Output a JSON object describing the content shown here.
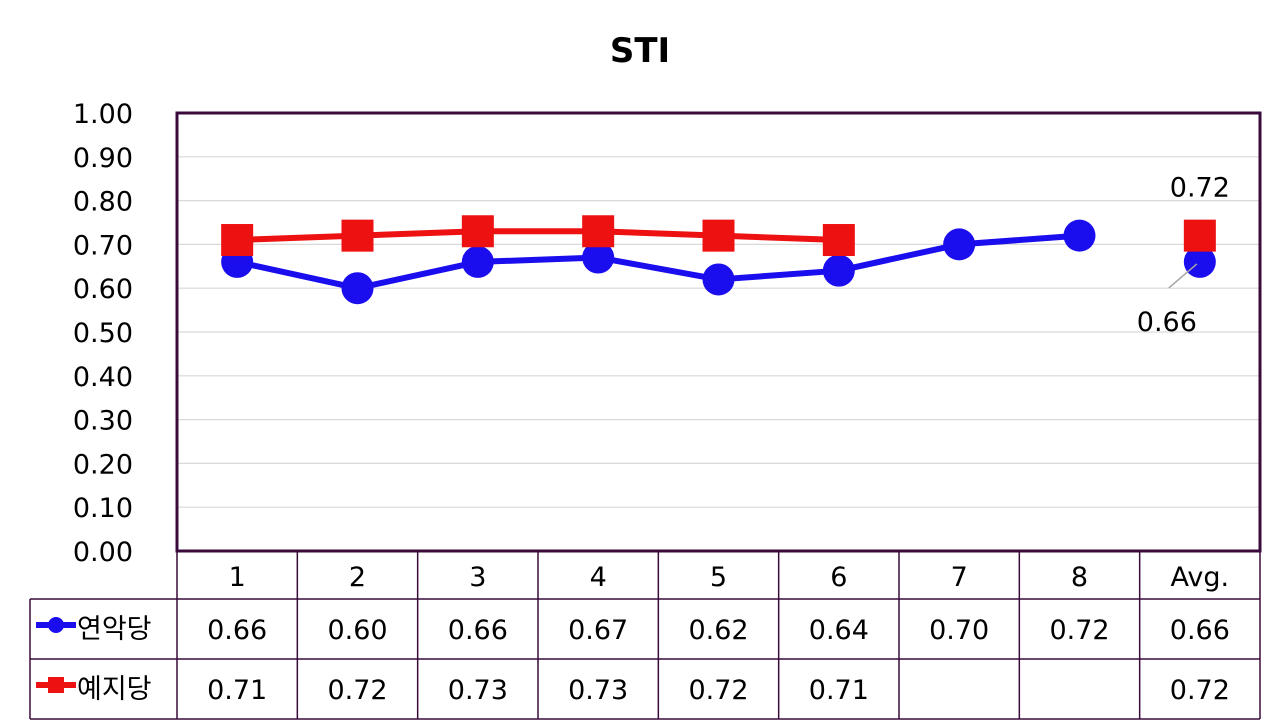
{
  "chart_data": {
    "type": "line",
    "title": "STI",
    "categories": [
      "1",
      "2",
      "3",
      "4",
      "5",
      "6",
      "7",
      "8",
      "Avg."
    ],
    "ylim": [
      0,
      1.0
    ],
    "ytick_step": 0.1,
    "yticks": [
      "0.00",
      "0.10",
      "0.20",
      "0.30",
      "0.40",
      "0.50",
      "0.60",
      "0.70",
      "0.80",
      "0.90",
      "1.00"
    ],
    "grid": true,
    "data_table": true,
    "series": [
      {
        "name": "연악당",
        "color": "#1a0dee",
        "marker": "circle",
        "values": [
          0.66,
          0.6,
          0.66,
          0.67,
          0.62,
          0.64,
          0.7,
          0.72,
          0.66
        ],
        "labels": [
          "0.66",
          "0.60",
          "0.66",
          "0.67",
          "0.62",
          "0.64",
          "0.70",
          "0.72",
          "0.66"
        ]
      },
      {
        "name": "예지당",
        "color": "#ee1111",
        "marker": "square",
        "values": [
          0.71,
          0.72,
          0.73,
          0.73,
          0.72,
          0.71,
          null,
          null,
          0.72
        ],
        "labels": [
          "0.71",
          "0.72",
          "0.73",
          "0.73",
          "0.72",
          "0.71",
          "",
          "",
          "0.72"
        ]
      }
    ],
    "annotations": [
      {
        "text": "0.72",
        "series": "예지당",
        "category": "Avg."
      },
      {
        "text": "0.66",
        "series": "연악당",
        "category": "Avg."
      }
    ]
  }
}
